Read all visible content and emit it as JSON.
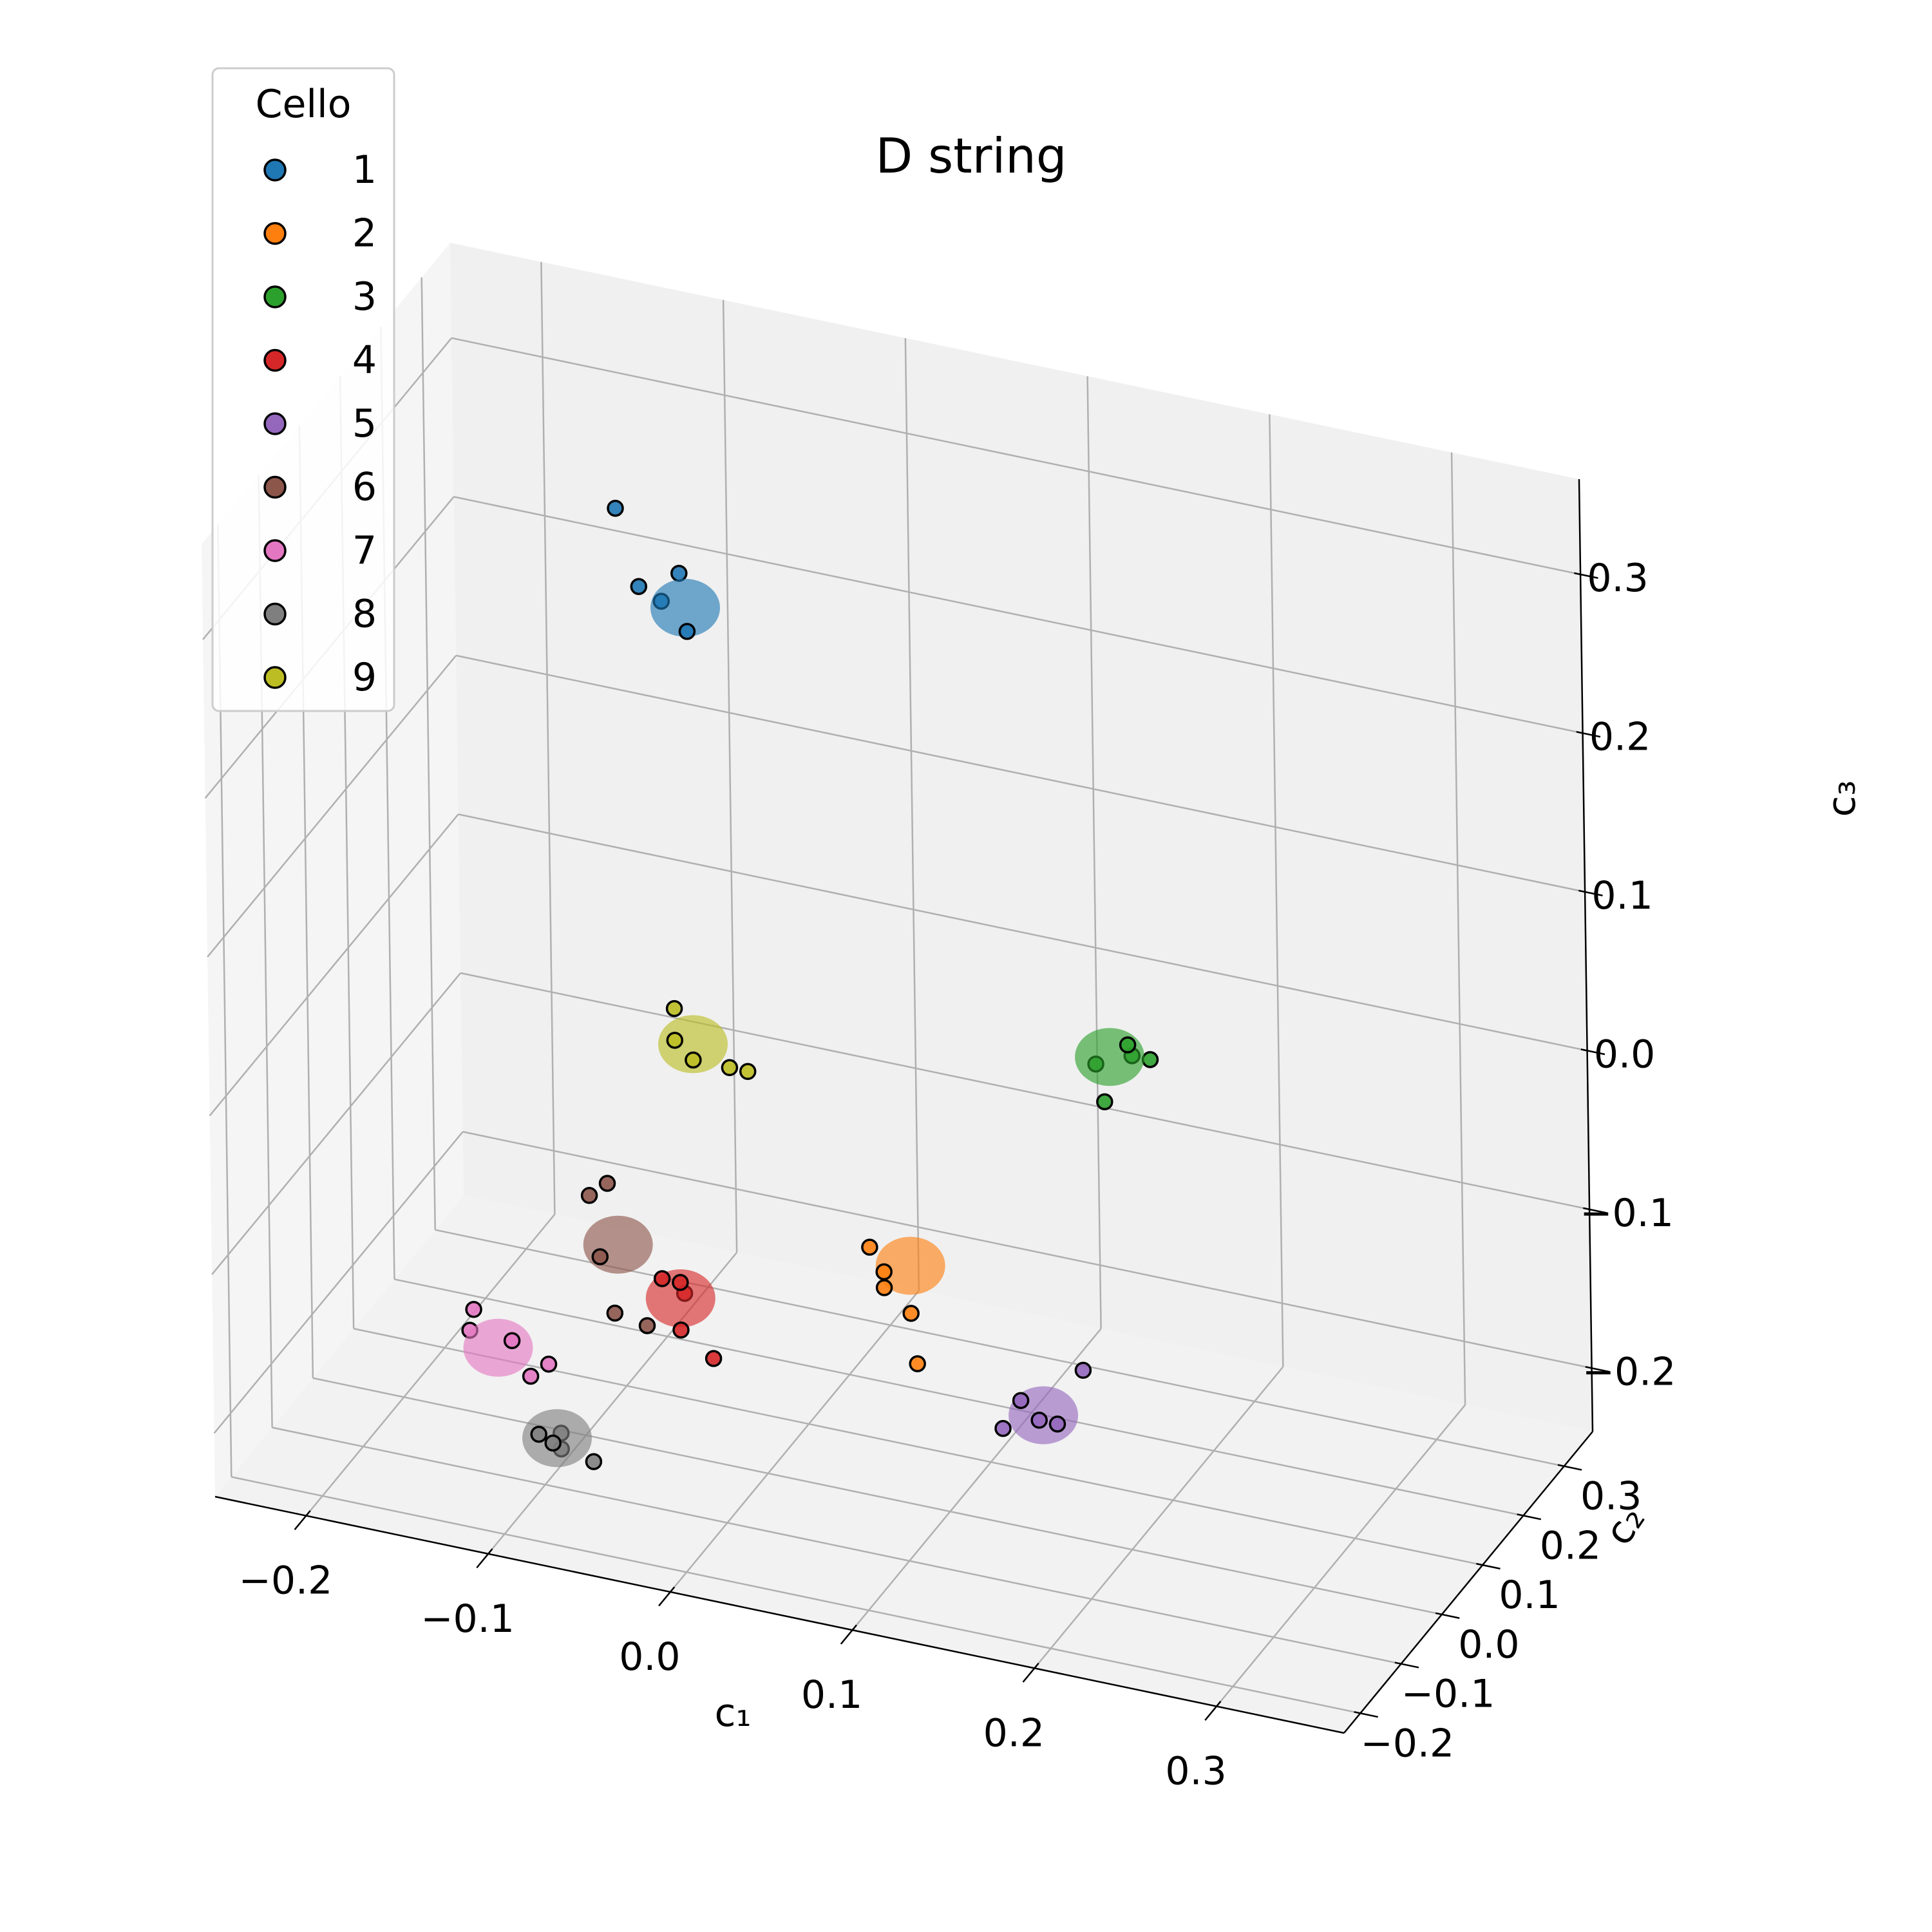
{
  "chart_data": {
    "type": "scatter",
    "title": "D string",
    "xlabel": "c₁",
    "ylabel": "c₂",
    "zlabel": "c₃",
    "xticks": [
      "−0.2",
      "−0.1",
      "0.0",
      "0.1",
      "0.2",
      "0.3"
    ],
    "yticks": [
      "−0.2",
      "−0.1",
      "0.0",
      "0.1",
      "0.2",
      "0.3"
    ],
    "zticks": [
      "−0.2",
      "−0.1",
      "0.0",
      "0.1",
      "0.2",
      "0.3"
    ],
    "xlim": [
      -0.25,
      0.37
    ],
    "ylim": [
      -0.24,
      0.37
    ],
    "zlim": [
      -0.24,
      0.36
    ],
    "grid": true,
    "projection": "3d",
    "legend": {
      "title": "Cello",
      "position": "top-left"
    },
    "series": [
      {
        "name": "1",
        "color": "#1f77b4",
        "points": [
          [
            -0.12,
            0.19,
            0.28
          ],
          [
            -0.1,
            0.21,
            0.22
          ],
          [
            -0.11,
            0.2,
            0.23
          ],
          [
            -0.09,
            0.21,
            0.24
          ],
          [
            -0.07,
            0.14,
            0.23
          ],
          [
            -0.08,
            0.18,
            0.23
          ]
        ]
      },
      {
        "name": "2",
        "color": "#ff7f0e",
        "points": [
          [
            0.07,
            -0.02,
            -0.1
          ],
          [
            0.06,
            -0.01,
            -0.08
          ],
          [
            0.08,
            0.0,
            -0.12
          ],
          [
            0.09,
            -0.03,
            -0.14
          ],
          [
            0.07,
            -0.02,
            -0.09
          ],
          [
            0.08,
            0.0,
            -0.09
          ]
        ]
      },
      {
        "name": "3",
        "color": "#2ca02c",
        "points": [
          [
            0.19,
            0.05,
            0.06
          ],
          [
            0.17,
            0.06,
            0.04
          ],
          [
            0.19,
            0.06,
            0.05
          ],
          [
            0.2,
            0.06,
            0.05
          ],
          [
            0.17,
            0.08,
            0.01
          ],
          [
            0.18,
            0.05,
            0.05
          ]
        ]
      },
      {
        "name": "4",
        "color": "#d62728",
        "points": [
          [
            -0.05,
            -0.03,
            -0.12
          ],
          [
            -0.04,
            -0.03,
            -0.12
          ],
          [
            -0.04,
            -0.02,
            -0.13
          ],
          [
            -0.04,
            -0.03,
            -0.15
          ],
          [
            -0.02,
            -0.04,
            -0.16
          ],
          [
            -0.04,
            -0.03,
            -0.13
          ]
        ]
      },
      {
        "name": "5",
        "color": "#9467bd",
        "points": [
          [
            0.19,
            -0.22,
            -0.08
          ],
          [
            0.18,
            -0.22,
            -0.1
          ],
          [
            0.2,
            -0.22,
            -0.09
          ],
          [
            0.21,
            -0.22,
            -0.09
          ],
          [
            0.22,
            -0.2,
            -0.06
          ],
          [
            0.2,
            -0.21,
            -0.09
          ]
        ]
      },
      {
        "name": "6",
        "color": "#8c564b",
        "points": [
          [
            -0.09,
            0.03,
            -0.17
          ],
          [
            -0.1,
            0.04,
            -0.14
          ],
          [
            -0.11,
            0.06,
            -0.11
          ],
          [
            -0.1,
            0.06,
            -0.1
          ],
          [
            -0.07,
            0.02,
            -0.17
          ],
          [
            -0.09,
            0.04,
            -0.13
          ]
        ]
      },
      {
        "name": "7",
        "color": "#e377c2",
        "points": [
          [
            -0.17,
            0.03,
            -0.2
          ],
          [
            -0.17,
            0.04,
            -0.19
          ],
          [
            -0.14,
            0.0,
            -0.19
          ],
          [
            -0.13,
            0.0,
            -0.21
          ],
          [
            -0.12,
            0.0,
            -0.2
          ],
          [
            -0.15,
            0.01,
            -0.2
          ]
        ]
      },
      {
        "name": "8",
        "color": "#7f7f7f",
        "points": [
          [
            -0.1,
            -0.08,
            -0.22
          ],
          [
            -0.11,
            -0.07,
            -0.22
          ],
          [
            -0.1,
            -0.06,
            -0.22
          ],
          [
            -0.1,
            -0.06,
            -0.23
          ],
          [
            -0.08,
            -0.07,
            -0.23
          ],
          [
            -0.1,
            -0.07,
            -0.22
          ]
        ]
      },
      {
        "name": "9",
        "color": "#bcbd22",
        "points": [
          [
            -0.08,
            0.14,
            -0.01
          ],
          [
            -0.08,
            0.14,
            -0.03
          ],
          [
            -0.07,
            0.14,
            -0.04
          ],
          [
            -0.05,
            0.14,
            -0.04
          ],
          [
            -0.04,
            0.14,
            -0.04
          ],
          [
            -0.07,
            0.14,
            -0.03
          ]
        ]
      }
    ]
  }
}
